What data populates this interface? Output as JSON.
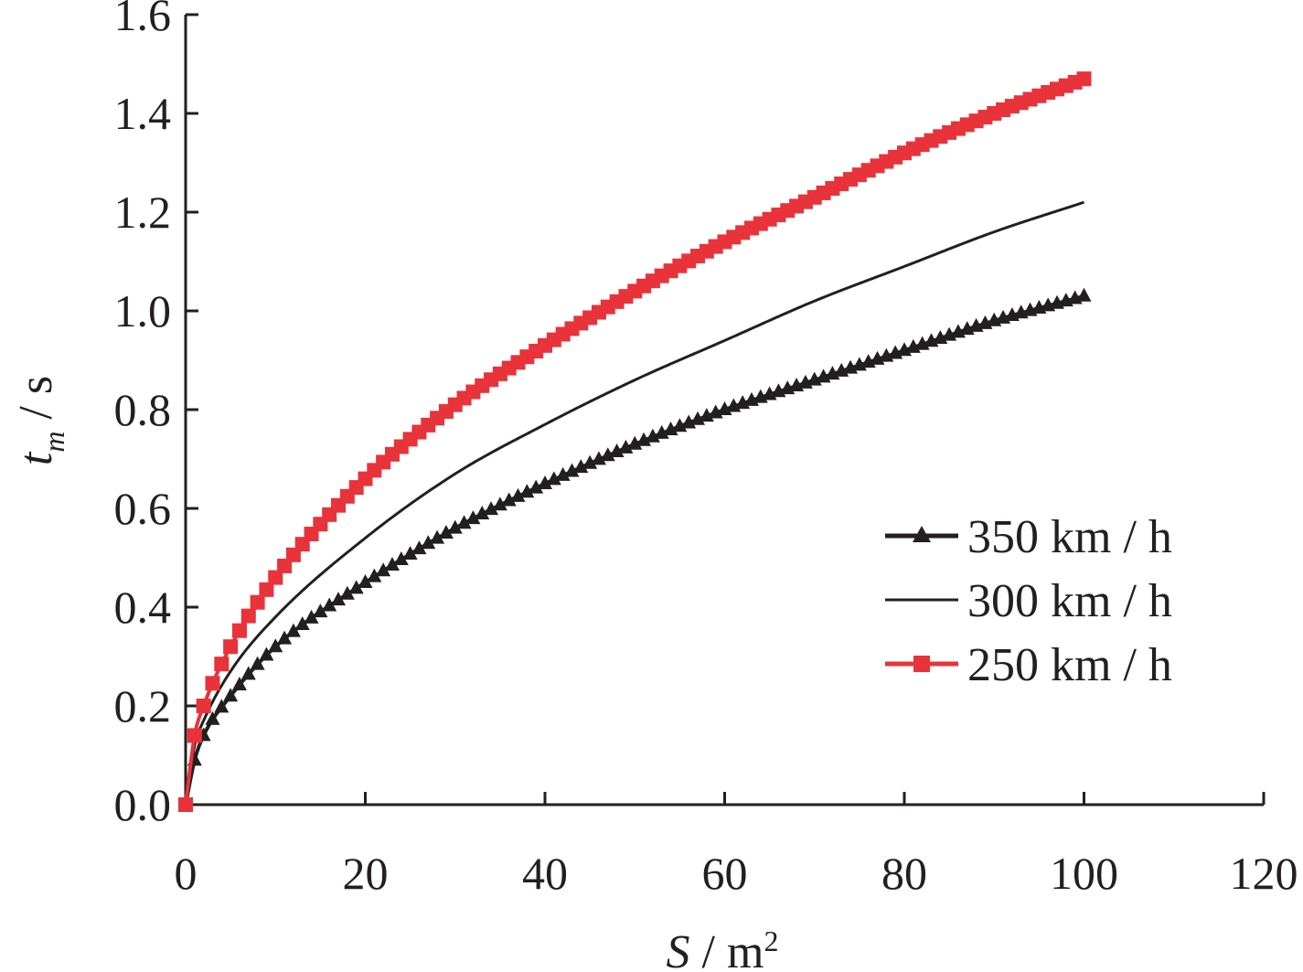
{
  "chart_data": {
    "type": "line",
    "xlabel": {
      "main": "S",
      "unit": " / m",
      "sup": "2"
    },
    "ylabel": {
      "main": "t",
      "sub": "m",
      "unit": " / s"
    },
    "xlim": [
      0,
      120
    ],
    "ylim": [
      0,
      1.6
    ],
    "x_ticks": [
      "0",
      "20",
      "40",
      "60",
      "80",
      "100",
      "120"
    ],
    "y_ticks": [
      "0.0",
      "0.2",
      "0.4",
      "0.6",
      "0.8",
      "1.0",
      "1.2",
      "1.4",
      "1.6"
    ],
    "grid": false,
    "legend_position": "right",
    "series": [
      {
        "name": "350 km / h",
        "color": "#231f20",
        "marker": "triangle",
        "x": [
          0,
          1,
          2,
          5,
          10,
          20,
          30,
          40,
          50,
          60,
          70,
          80,
          90,
          100
        ],
        "y": [
          0,
          0.09,
          0.14,
          0.22,
          0.32,
          0.45,
          0.56,
          0.65,
          0.73,
          0.8,
          0.86,
          0.92,
          0.98,
          1.03
        ]
      },
      {
        "name": "300 km / h",
        "color": "#231f20",
        "marker": "none",
        "x": [
          0,
          1,
          2,
          5,
          10,
          20,
          30,
          40,
          50,
          60,
          70,
          80,
          90,
          100
        ],
        "y": [
          0,
          0.12,
          0.17,
          0.27,
          0.38,
          0.54,
          0.67,
          0.77,
          0.86,
          0.94,
          1.02,
          1.09,
          1.16,
          1.22
        ]
      },
      {
        "name": "250 km / h",
        "color": "#e8333a",
        "marker": "square",
        "x": [
          0,
          1,
          2,
          5,
          10,
          20,
          30,
          40,
          50,
          60,
          70,
          80,
          90,
          100
        ],
        "y": [
          0,
          0.14,
          0.2,
          0.32,
          0.46,
          0.66,
          0.81,
          0.93,
          1.04,
          1.14,
          1.23,
          1.32,
          1.4,
          1.47
        ]
      }
    ]
  }
}
